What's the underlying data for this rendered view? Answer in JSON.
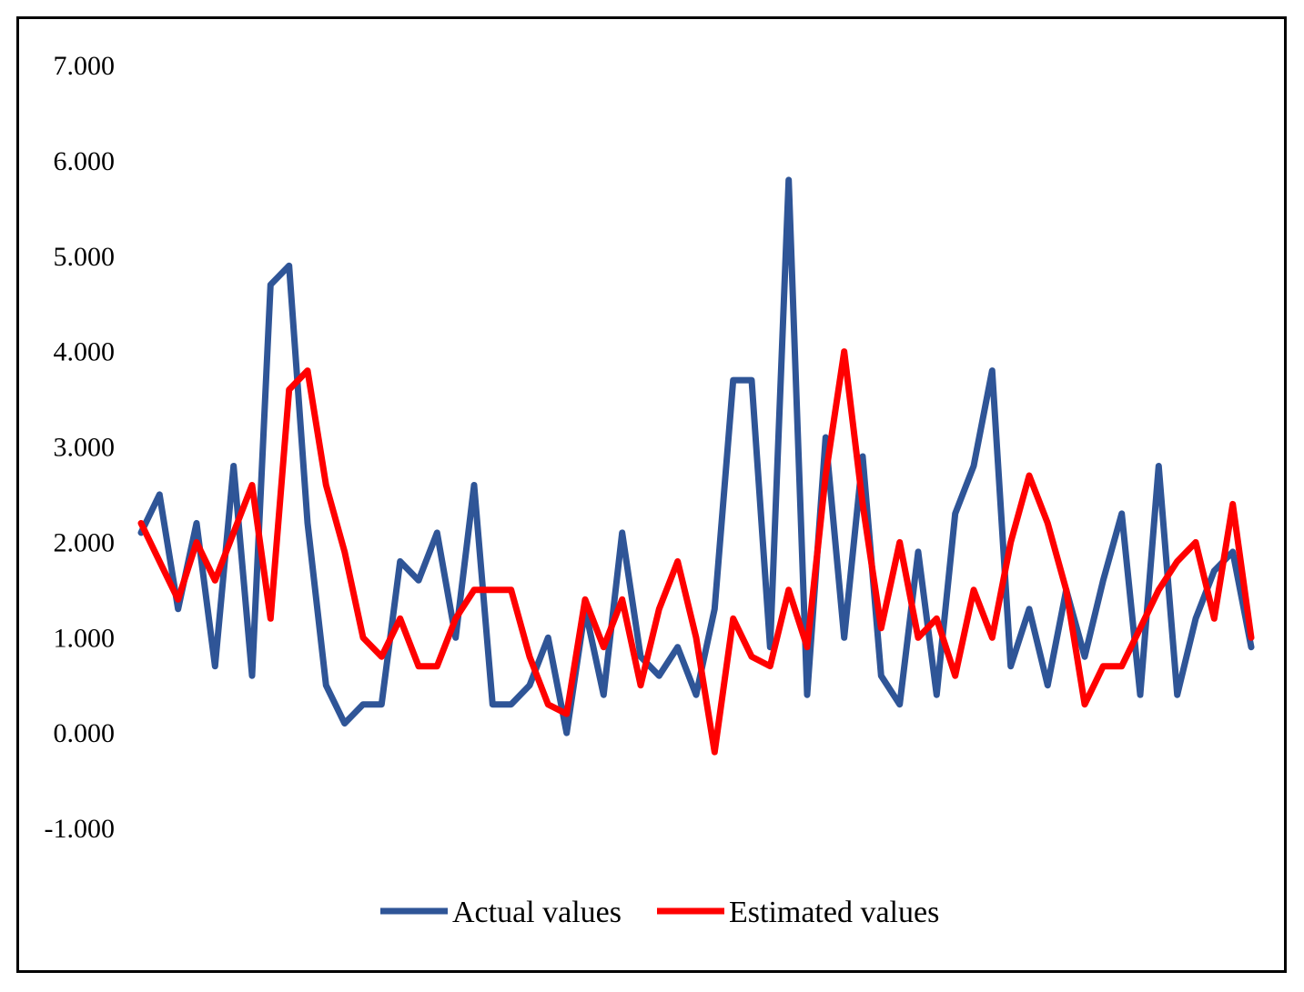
{
  "chart_data": {
    "type": "line",
    "title": "",
    "xlabel": "",
    "ylabel": "",
    "ylim": [
      -1,
      7
    ],
    "yticks": [
      7,
      6,
      5,
      4,
      3,
      2,
      1,
      0,
      -1
    ],
    "ytick_labels": [
      "7.000",
      "6.000",
      "5.000",
      "4.000",
      "3.000",
      "2.000",
      "1.000",
      "0.000",
      "-1.000"
    ],
    "grid": false,
    "legend_position": "bottom",
    "x": [
      1,
      6,
      11,
      16,
      21,
      26,
      31,
      36,
      41,
      46,
      51,
      56,
      61,
      66,
      71,
      76,
      81,
      86,
      91,
      96,
      101,
      106,
      111,
      116,
      121,
      126,
      131,
      136,
      141,
      146,
      151,
      156,
      161,
      166,
      171,
      176,
      181,
      186,
      191,
      196,
      201,
      206,
      211,
      216,
      221,
      226,
      231,
      236,
      241,
      246,
      251,
      256,
      261,
      266,
      271,
      276,
      281,
      286,
      291,
      296,
      301
    ],
    "series": [
      {
        "name": "Actual values",
        "color": "#2f5597",
        "values": [
          2.1,
          2.5,
          1.3,
          2.2,
          0.7,
          2.8,
          0.6,
          4.7,
          4.9,
          2.2,
          0.5,
          0.1,
          0.3,
          0.3,
          1.8,
          1.6,
          2.1,
          1.0,
          2.6,
          0.3,
          0.3,
          0.5,
          1.0,
          0.0,
          1.3,
          0.4,
          2.1,
          0.8,
          0.6,
          0.9,
          0.4,
          1.3,
          3.7,
          3.7,
          0.9,
          5.8,
          0.4,
          3.1,
          1.0,
          2.9,
          0.6,
          0.3,
          1.9,
          0.4,
          2.3,
          2.8,
          3.8,
          0.7,
          1.3,
          0.5,
          1.5,
          0.8,
          1.6,
          2.3,
          0.4,
          2.8,
          0.4,
          1.2,
          1.7,
          1.9,
          0.9
        ]
      },
      {
        "name": "Estimated values",
        "color": "#ff0000",
        "values": [
          2.2,
          1.8,
          1.4,
          2.0,
          1.6,
          2.1,
          2.6,
          1.2,
          3.6,
          3.8,
          2.6,
          1.9,
          1.0,
          0.8,
          1.2,
          0.7,
          0.7,
          1.2,
          1.5,
          1.5,
          1.5,
          0.8,
          0.3,
          0.2,
          1.4,
          0.9,
          1.4,
          0.5,
          1.3,
          1.8,
          1.0,
          -0.2,
          1.2,
          0.8,
          0.7,
          1.5,
          0.9,
          2.7,
          4.0,
          2.4,
          1.1,
          2.0,
          1.0,
          1.2,
          0.6,
          1.5,
          1.0,
          2.0,
          2.7,
          2.2,
          1.5,
          0.3,
          0.7,
          0.7,
          1.1,
          1.5,
          1.8,
          2.0,
          1.2,
          2.4,
          1.0
        ]
      }
    ]
  }
}
